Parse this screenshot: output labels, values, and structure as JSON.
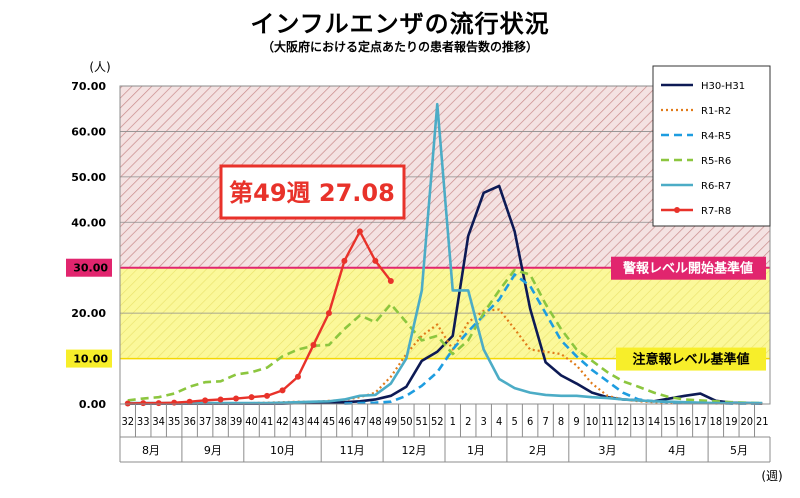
{
  "title": "インフルエンザの流行状況",
  "subtitle": "（大阪府における定点あたりの患者報告数の推移）",
  "colors": {
    "warning": "#e1256e",
    "attention": "#f5d800",
    "current": "#e8322a"
  },
  "chart_data": {
    "type": "line",
    "ylabel": "(人)",
    "xlabel": "(週)",
    "ylim": [
      0,
      70
    ],
    "yticks": [
      "0.00",
      "10.00",
      "20.00",
      "30.00",
      "40.00",
      "50.00",
      "60.00",
      "70.00"
    ],
    "x": [
      "32",
      "33",
      "34",
      "35",
      "36",
      "37",
      "38",
      "39",
      "40",
      "41",
      "42",
      "43",
      "44",
      "45",
      "46",
      "47",
      "48",
      "49",
      "50",
      "51",
      "52",
      "1",
      "2",
      "3",
      "4",
      "5",
      "6",
      "7",
      "8",
      "9",
      "10",
      "11",
      "12",
      "13",
      "14",
      "15",
      "16",
      "17",
      "18",
      "19",
      "20",
      "21"
    ],
    "months": [
      {
        "label": "8月",
        "start": 0,
        "end": 4
      },
      {
        "label": "9月",
        "start": 4,
        "end": 8
      },
      {
        "label": "10月",
        "start": 8,
        "end": 13
      },
      {
        "label": "11月",
        "start": 13,
        "end": 17
      },
      {
        "label": "12月",
        "start": 17,
        "end": 21
      },
      {
        "label": "1月",
        "start": 21,
        "end": 25
      },
      {
        "label": "2月",
        "start": 25,
        "end": 29
      },
      {
        "label": "3月",
        "start": 29,
        "end": 34
      },
      {
        "label": "4月",
        "start": 34,
        "end": 38
      },
      {
        "label": "5月",
        "start": 38,
        "end": 42
      }
    ],
    "thresholds": [
      {
        "name": "warning",
        "value": 30,
        "label": "警報レベル開始基準値",
        "ylabel": "30.00"
      },
      {
        "name": "attention",
        "value": 10,
        "label": "注意報レベル基準値",
        "ylabel": "10.00"
      }
    ],
    "callout": "第49週  27.08",
    "series": [
      {
        "name": "H30-H31",
        "color": "#0d1a55",
        "style": "solid",
        "values": [
          0.1,
          0.1,
          0.1,
          0.1,
          0.1,
          0.1,
          0.1,
          0.1,
          0.1,
          0.1,
          0.1,
          0.2,
          0.2,
          0.3,
          0.4,
          0.6,
          1.0,
          1.8,
          3.8,
          9.5,
          11.5,
          15.0,
          37.0,
          46.5,
          48.0,
          38.0,
          21.0,
          9.2,
          6.3,
          4.5,
          2.5,
          1.5,
          1.0,
          0.8,
          0.6,
          1.2,
          1.8,
          2.3,
          0.7,
          0.3,
          0.2,
          0.1
        ]
      },
      {
        "name": "R1-R2",
        "color": "#e07b1a",
        "style": "dotted",
        "values": [
          0.1,
          0.1,
          0.1,
          0.1,
          0.1,
          0.1,
          0.1,
          0.2,
          0.2,
          0.3,
          0.4,
          0.5,
          0.5,
          0.7,
          0.9,
          1.5,
          2.5,
          6.0,
          11.0,
          15.0,
          17.5,
          12.0,
          18.0,
          20.5,
          20.8,
          16.5,
          12.0,
          11.5,
          11.0,
          8.5,
          4.5,
          1.8,
          1.0,
          0.6,
          0.4,
          0.3,
          0.2,
          0.2,
          0.1,
          0.1,
          0.1,
          0.1
        ]
      },
      {
        "name": "R4-R5",
        "color": "#1e9de0",
        "style": "dashed",
        "values": [
          null,
          null,
          null,
          null,
          null,
          null,
          null,
          null,
          null,
          null,
          null,
          null,
          null,
          null,
          0.1,
          0.2,
          0.3,
          0.5,
          1.8,
          4.0,
          7.0,
          12.0,
          16.0,
          19.5,
          23.0,
          28.5,
          26.0,
          20.0,
          14.0,
          10.5,
          7.5,
          5.0,
          2.5,
          1.0,
          0.6,
          0.4,
          0.3,
          0.2,
          0.2,
          0.1,
          0.1,
          0.1
        ]
      },
      {
        "name": "R5-R6",
        "color": "#8cc63f",
        "style": "dashed",
        "values": [
          0.8,
          1.2,
          1.5,
          2.3,
          3.8,
          4.8,
          5.0,
          6.5,
          7.0,
          8.0,
          10.5,
          12.0,
          12.8,
          13.0,
          16.5,
          19.5,
          18.0,
          22.0,
          18.0,
          14.0,
          15.0,
          11.0,
          14.0,
          20.0,
          25.0,
          29.5,
          28.5,
          22.0,
          16.5,
          12.0,
          9.5,
          7.0,
          5.0,
          3.8,
          2.5,
          1.5,
          1.0,
          0.8,
          0.6,
          0.4,
          0.3,
          0.2
        ]
      },
      {
        "name": "R6-R7",
        "color": "#4cacc6",
        "style": "solid",
        "values": [
          0.2,
          0.2,
          0.2,
          0.2,
          0.2,
          0.2,
          0.2,
          0.2,
          0.2,
          0.2,
          0.3,
          0.4,
          0.5,
          0.6,
          1.0,
          1.8,
          2.0,
          4.5,
          10.0,
          25.0,
          66.0,
          25.0,
          25.0,
          12.0,
          5.5,
          3.5,
          2.5,
          2.0,
          1.8,
          1.8,
          1.5,
          1.3,
          1.0,
          0.8,
          0.6,
          0.5,
          0.4,
          0.3,
          0.2,
          0.2,
          0.2,
          0.2
        ]
      },
      {
        "name": "R7-R8",
        "color": "#e8322a",
        "style": "marker",
        "values": [
          0.1,
          0.2,
          0.2,
          0.3,
          0.5,
          0.8,
          1.0,
          1.2,
          1.5,
          1.8,
          3.0,
          6.0,
          13.0,
          20.0,
          31.5,
          38.0,
          31.5,
          27.08,
          null,
          null,
          null,
          null,
          null,
          null,
          null,
          null,
          null,
          null,
          null,
          null,
          null,
          null,
          null,
          null,
          null,
          null,
          null,
          null,
          null,
          null,
          null,
          null
        ]
      }
    ]
  }
}
